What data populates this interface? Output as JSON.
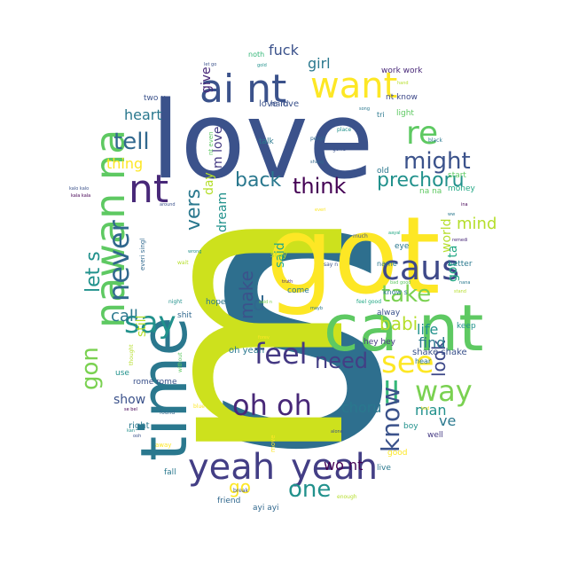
{
  "words": [
    {
      "text": "s",
      "color": "#2e6f8e"
    },
    {
      "text": "m",
      "color": "#cde11d"
    },
    {
      "text": "love",
      "color": "#3b528b"
    },
    {
      "text": "got",
      "color": "#fde725"
    },
    {
      "text": "ca nt",
      "color": "#5ec962"
    },
    {
      "text": "time",
      "color": "#2a788e"
    },
    {
      "text": "yeah",
      "color": "#433e85"
    },
    {
      "text": "yeah",
      "color": "#433e85"
    },
    {
      "text": "ai nt",
      "color": "#3b528b"
    },
    {
      "text": "want",
      "color": "#fde725"
    },
    {
      "text": "nawan na",
      "color": "#5ec962"
    },
    {
      "text": "nt",
      "color": "#482878"
    },
    {
      "text": "never",
      "color": "#31688e"
    },
    {
      "text": "caus",
      "color": "#3e4989"
    },
    {
      "text": "say",
      "color": "#21918c"
    },
    {
      "text": "feel",
      "color": "#443983"
    },
    {
      "text": "see",
      "color": "#fde725"
    },
    {
      "text": "re",
      "color": "#5ec962"
    },
    {
      "text": "ll",
      "color": "#35b779"
    },
    {
      "text": "know",
      "color": "#3b528b"
    },
    {
      "text": "way",
      "color": "#7ad151"
    },
    {
      "text": "oh oh",
      "color": "#482878"
    },
    {
      "text": "one",
      "color": "#21918c"
    },
    {
      "text": "tell",
      "color": "#31688e"
    },
    {
      "text": "might",
      "color": "#3b528b"
    },
    {
      "text": "think",
      "color": "#440154"
    },
    {
      "text": "need",
      "color": "#433e85"
    },
    {
      "text": "take",
      "color": "#7ad151"
    },
    {
      "text": "gon",
      "color": "#7ad151"
    },
    {
      "text": "let s",
      "color": "#21918c"
    },
    {
      "text": "babi",
      "color": "#b5de2b"
    },
    {
      "text": "make",
      "color": "#3b528b"
    },
    {
      "text": "vers",
      "color": "#2a788e"
    },
    {
      "text": "look",
      "color": "#3e4989"
    },
    {
      "text": "go",
      "color": "#fde725"
    },
    {
      "text": "back",
      "color": "#2a788e"
    },
    {
      "text": "prechoru",
      "color": "#21918c"
    },
    {
      "text": "girl",
      "color": "#2a788e"
    },
    {
      "text": "fuck",
      "color": "#3b528b"
    },
    {
      "text": "heart",
      "color": "#2a788e"
    },
    {
      "text": "thing",
      "color": "#fde725"
    },
    {
      "text": "mind",
      "color": "#b5de2b"
    },
    {
      "text": "world",
      "color": "#b5de2b"
    },
    {
      "text": "got ta",
      "color": "#22a884"
    },
    {
      "text": "call",
      "color": "#2a788e"
    },
    {
      "text": "still",
      "color": "#b5de2b"
    },
    {
      "text": "dream",
      "color": "#21918c"
    },
    {
      "text": "said",
      "color": "#22a884"
    },
    {
      "text": "day",
      "color": "#b5de2b"
    },
    {
      "text": "d",
      "color": "#31688e"
    },
    {
      "text": "life",
      "color": "#21918c"
    },
    {
      "text": "find",
      "color": "#2a788e"
    },
    {
      "text": "show",
      "color": "#3b528b"
    },
    {
      "text": "choru",
      "color": "#2a788e"
    },
    {
      "text": "man",
      "color": "#21918c"
    },
    {
      "text": "ve",
      "color": "#2a788e"
    },
    {
      "text": "wo nt",
      "color": "#440154"
    },
    {
      "text": "m love",
      "color": "#443983"
    },
    {
      "text": "give",
      "color": "#482878"
    },
    {
      "text": "love love",
      "color": "#3b528b"
    },
    {
      "text": "oh yeah",
      "color": "#2a788e"
    },
    {
      "text": "hey hey",
      "color": "#443983"
    },
    {
      "text": "shake shake",
      "color": "#3b528b"
    },
    {
      "text": "rome rome",
      "color": "#3b528b"
    },
    {
      "text": "right",
      "color": "#2a788e"
    },
    {
      "text": "use",
      "color": "#21918c"
    },
    {
      "text": "hope",
      "color": "#2a788e"
    },
    {
      "text": "shit",
      "color": "#31688e"
    },
    {
      "text": "come",
      "color": "#2a788e"
    },
    {
      "text": "alway",
      "color": "#3b528b"
    },
    {
      "text": "keep",
      "color": "#21918c"
    },
    {
      "text": "good",
      "color": "#fde725"
    },
    {
      "text": "live",
      "color": "#2a788e"
    },
    {
      "text": "well",
      "color": "#443983"
    },
    {
      "text": "boy",
      "color": "#21918c"
    },
    {
      "text": "friend",
      "color": "#31688e"
    },
    {
      "text": "ayi ayi",
      "color": "#31688e"
    },
    {
      "text": "fall",
      "color": "#2a788e"
    },
    {
      "text": "move",
      "color": "#fde725"
    },
    {
      "text": "name",
      "color": "#2a788e"
    },
    {
      "text": "better",
      "color": "#2a788e"
    },
    {
      "text": "money",
      "color": "#22a884"
    },
    {
      "text": "start",
      "color": "#5ec962"
    },
    {
      "text": "eye",
      "color": "#2a788e"
    },
    {
      "text": "old",
      "color": "#2a788e"
    },
    {
      "text": "light",
      "color": "#5ec962"
    },
    {
      "text": "talk",
      "color": "#2a788e"
    },
    {
      "text": "hard",
      "color": "#3b528b"
    },
    {
      "text": "two u",
      "color": "#3b528b"
    },
    {
      "text": "work work",
      "color": "#482878"
    },
    {
      "text": "nt know",
      "color": "#3e4989"
    },
    {
      "text": "noth",
      "color": "#35b779"
    },
    {
      "text": "tri",
      "color": "#2a788e"
    },
    {
      "text": "hear",
      "color": "#2a788e"
    },
    {
      "text": "na na",
      "color": "#5ec962"
    },
    {
      "text": "stay",
      "color": "#b5de2b"
    },
    {
      "text": "know s",
      "color": "#2a788e"
    },
    {
      "text": "say n",
      "color": "#3b528b"
    },
    {
      "text": "everi singl",
      "color": "#31688e"
    },
    {
      "text": "peopl",
      "color": "#31688e"
    },
    {
      "text": "break",
      "color": "#3b528b"
    },
    {
      "text": "enough",
      "color": "#b5de2b"
    },
    {
      "text": "away",
      "color": "#fde725"
    },
    {
      "text": "thought",
      "color": "#b5de2b"
    },
    {
      "text": "place",
      "color": "#21918c"
    },
    {
      "text": "gone",
      "color": "#3b528b"
    },
    {
      "text": "black",
      "color": "#2a788e"
    },
    {
      "text": "found",
      "color": "#31688e"
    },
    {
      "text": "wait",
      "color": "#b5de2b"
    },
    {
      "text": "night",
      "color": "#21918c"
    },
    {
      "text": "without",
      "color": "#5ec962"
    },
    {
      "text": "blue",
      "color": "#fde725"
    },
    {
      "text": "feel good",
      "color": "#22a884"
    },
    {
      "text": "much",
      "color": "#3b528b"
    },
    {
      "text": "nana",
      "color": "#2a788e"
    },
    {
      "text": "stand",
      "color": "#b5de2b"
    },
    {
      "text": "around",
      "color": "#3b528b"
    },
    {
      "text": "kala kala",
      "color": "#440154"
    },
    {
      "text": "remedi",
      "color": "#482878"
    },
    {
      "text": "hand",
      "color": "#b5de2b"
    },
    {
      "text": "song",
      "color": "#2a788e"
    },
    {
      "text": "wrong",
      "color": "#21918c"
    },
    {
      "text": "mayb",
      "color": "#2a788e"
    },
    {
      "text": "truth",
      "color": "#482878"
    },
    {
      "text": "said n",
      "color": "#7ad151"
    },
    {
      "text": "everi",
      "color": "#fde725"
    },
    {
      "text": "kan",
      "color": "#21918c"
    },
    {
      "text": "ooh",
      "color": "#3b528b"
    },
    {
      "text": "shang",
      "color": "#31688e"
    },
    {
      "text": "alone",
      "color": "#3b528b"
    },
    {
      "text": "forev",
      "color": "#fde725"
    },
    {
      "text": "nt even",
      "color": "#5ec962"
    },
    {
      "text": "let go",
      "color": "#3b528b"
    },
    {
      "text": "bad",
      "color": "#fde725"
    },
    {
      "text": "se bel",
      "color": "#440154"
    },
    {
      "text": "gold",
      "color": "#21918c"
    },
    {
      "text": "ina",
      "color": "#440154"
    },
    {
      "text": "ww",
      "color": "#2a788e"
    },
    {
      "text": "kalo kalo",
      "color": "#3b528b"
    },
    {
      "text": "bad good",
      "color": "#5ec962"
    },
    {
      "text": "aayal",
      "color": "#22a884"
    }
  ]
}
